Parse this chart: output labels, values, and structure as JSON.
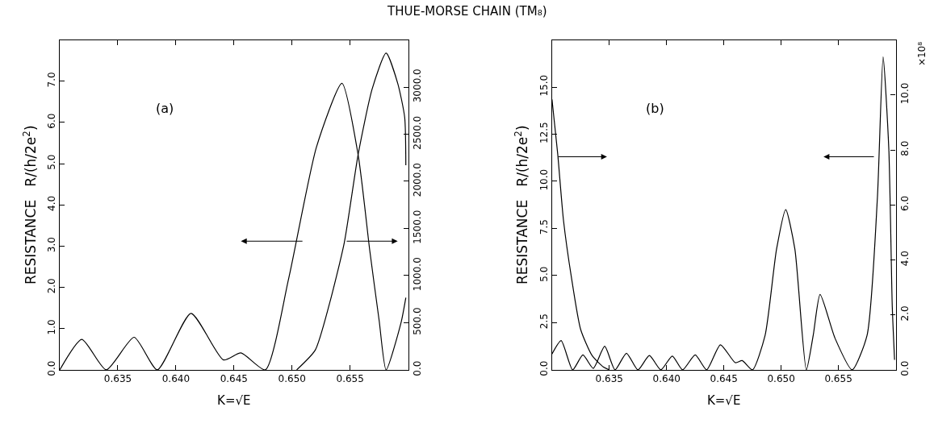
{
  "chart_data": [
    {
      "type": "line",
      "title": "THUE-MORSE CHAIN (TM₈)",
      "xlabel": "K=√E",
      "ylabel": "RESISTANCE   R/(h/2e$^{2}$)",
      "annotations": [
        "(a)"
      ],
      "marker": "none",
      "line_style": "solid",
      "xlim": [
        0.63,
        0.66
      ],
      "xticks": [
        {
          "value": 0.635,
          "label": "0.635"
        },
        {
          "value": 0.64,
          "label": "0.640"
        },
        {
          "value": 0.645,
          "label": "0.645"
        },
        {
          "value": 0.65,
          "label": "0.650"
        },
        {
          "value": 0.655,
          "label": "0.655"
        }
      ],
      "ylim": [
        0,
        8
      ],
      "yticks": [
        {
          "value": 0,
          "label": "0.0"
        },
        {
          "value": 1,
          "label": "1.0"
        },
        {
          "value": 2,
          "label": "2.0"
        },
        {
          "value": 3,
          "label": "3.0"
        },
        {
          "value": 4,
          "label": "4.0"
        },
        {
          "value": 5,
          "label": "5.0"
        },
        {
          "value": 6,
          "label": "6.0"
        },
        {
          "value": 7,
          "label": "7.0"
        }
      ],
      "y2lim": [
        0,
        3500
      ],
      "y2ticks": [
        {
          "value": 0,
          "label": "0.0"
        },
        {
          "value": 500,
          "label": "500.0"
        },
        {
          "value": 1000,
          "label": "1000.0"
        },
        {
          "value": 1500,
          "label": "1500.0"
        },
        {
          "value": 2000,
          "label": "2000.0"
        },
        {
          "value": 2500,
          "label": "2500.0"
        },
        {
          "value": 3000,
          "label": "3000.0"
        }
      ],
      "series": [
        {
          "color": "#000000",
          "x": [
            0.63,
            0.6319,
            0.634,
            0.6364,
            0.6384,
            0.6413,
            0.6441,
            0.6456,
            0.6477,
            0.6497,
            0.6521,
            0.6543,
            0.6557,
            0.6567,
            0.6575,
            0.6581,
            0.6594,
            0.6598
          ],
          "values": [
            0,
            0.74,
            0,
            0.79,
            0,
            1.37,
            0.24,
            0.41,
            0,
            2.2,
            5.4,
            6.95,
            5.2,
            2.88,
            1.2,
            0,
            1.16,
            1.75
          ]
        },
        {
          "color": "#000000",
          "axis": "y2",
          "x": [
            0.6504,
            0.652,
            0.6532,
            0.6545,
            0.6557,
            0.6569,
            0.6581,
            0.6591,
            0.6597,
            0.6598
          ],
          "values": [
            0,
            210,
            690,
            1350,
            2290,
            2980,
            3360,
            3040,
            2680,
            2170
          ]
        }
      ]
    },
    {
      "type": "line",
      "xlabel": "K=√E",
      "ylabel": "RESISTANCE   R/(h/2e$^{2}$)",
      "annotations": [
        "(b)",
        "×10⁸"
      ],
      "marker": "none",
      "line_style": "solid",
      "xlim": [
        0.63,
        0.66
      ],
      "xticks": [
        {
          "value": 0.635,
          "label": "0.635"
        },
        {
          "value": 0.64,
          "label": "0.640"
        },
        {
          "value": 0.645,
          "label": "0.645"
        },
        {
          "value": 0.65,
          "label": "0.650"
        },
        {
          "value": 0.655,
          "label": "0.655"
        }
      ],
      "ylim": [
        0,
        17.5
      ],
      "yticks": [
        {
          "value": 0,
          "label": "0.0"
        },
        {
          "value": 2.5,
          "label": "2.5"
        },
        {
          "value": 5,
          "label": "5.0"
        },
        {
          "value": 7.5,
          "label": "7.5"
        },
        {
          "value": 10,
          "label": "10.0"
        },
        {
          "value": 12.5,
          "label": "12.5"
        },
        {
          "value": 15,
          "label": "15.0"
        }
      ],
      "y2lim": [
        0,
        12
      ],
      "y2ticks": [
        {
          "value": 0,
          "label": "0.0"
        },
        {
          "value": 2,
          "label": "2.0"
        },
        {
          "value": 4,
          "label": "4.0"
        },
        {
          "value": 6,
          "label": "6.0"
        },
        {
          "value": 8,
          "label": "8.0"
        },
        {
          "value": 10,
          "label": "10.0"
        }
      ],
      "series": [
        {
          "color": "#000000",
          "x": [
            0.63,
            0.6308,
            0.6318,
            0.6327,
            0.6336,
            0.6346,
            0.6355,
            0.6365,
            0.6375,
            0.6385,
            0.6395,
            0.6405,
            0.6414,
            0.6425,
            0.6435,
            0.6447,
            0.646,
            0.6466,
            0.6475,
            0.6486,
            0.6496,
            0.6504,
            0.6512,
            0.6522,
            0.6528,
            0.6534,
            0.6547,
            0.6562,
            0.6575,
            0.6584,
            0.6589,
            0.6594,
            0.6597,
            0.6599
          ],
          "values": [
            0.84,
            1.55,
            0,
            0.79,
            0.08,
            1.25,
            0,
            0.88,
            0,
            0.76,
            0,
            0.73,
            0,
            0.79,
            0,
            1.33,
            0.38,
            0.49,
            0,
            1.83,
            6.4,
            8.5,
            6.4,
            0,
            1.83,
            4.0,
            1.68,
            0,
            1.83,
            9.1,
            16.6,
            11.7,
            3.35,
            0.53
          ]
        },
        {
          "color": "#000000",
          "axis": "y2",
          "x": [
            0.63,
            0.6305,
            0.631,
            0.6317,
            0.6325,
            0.6335,
            0.6345,
            0.635
          ],
          "values": [
            9.84,
            7.85,
            5.45,
            3.35,
            1.47,
            0.52,
            0.1,
            0
          ]
        }
      ]
    }
  ]
}
